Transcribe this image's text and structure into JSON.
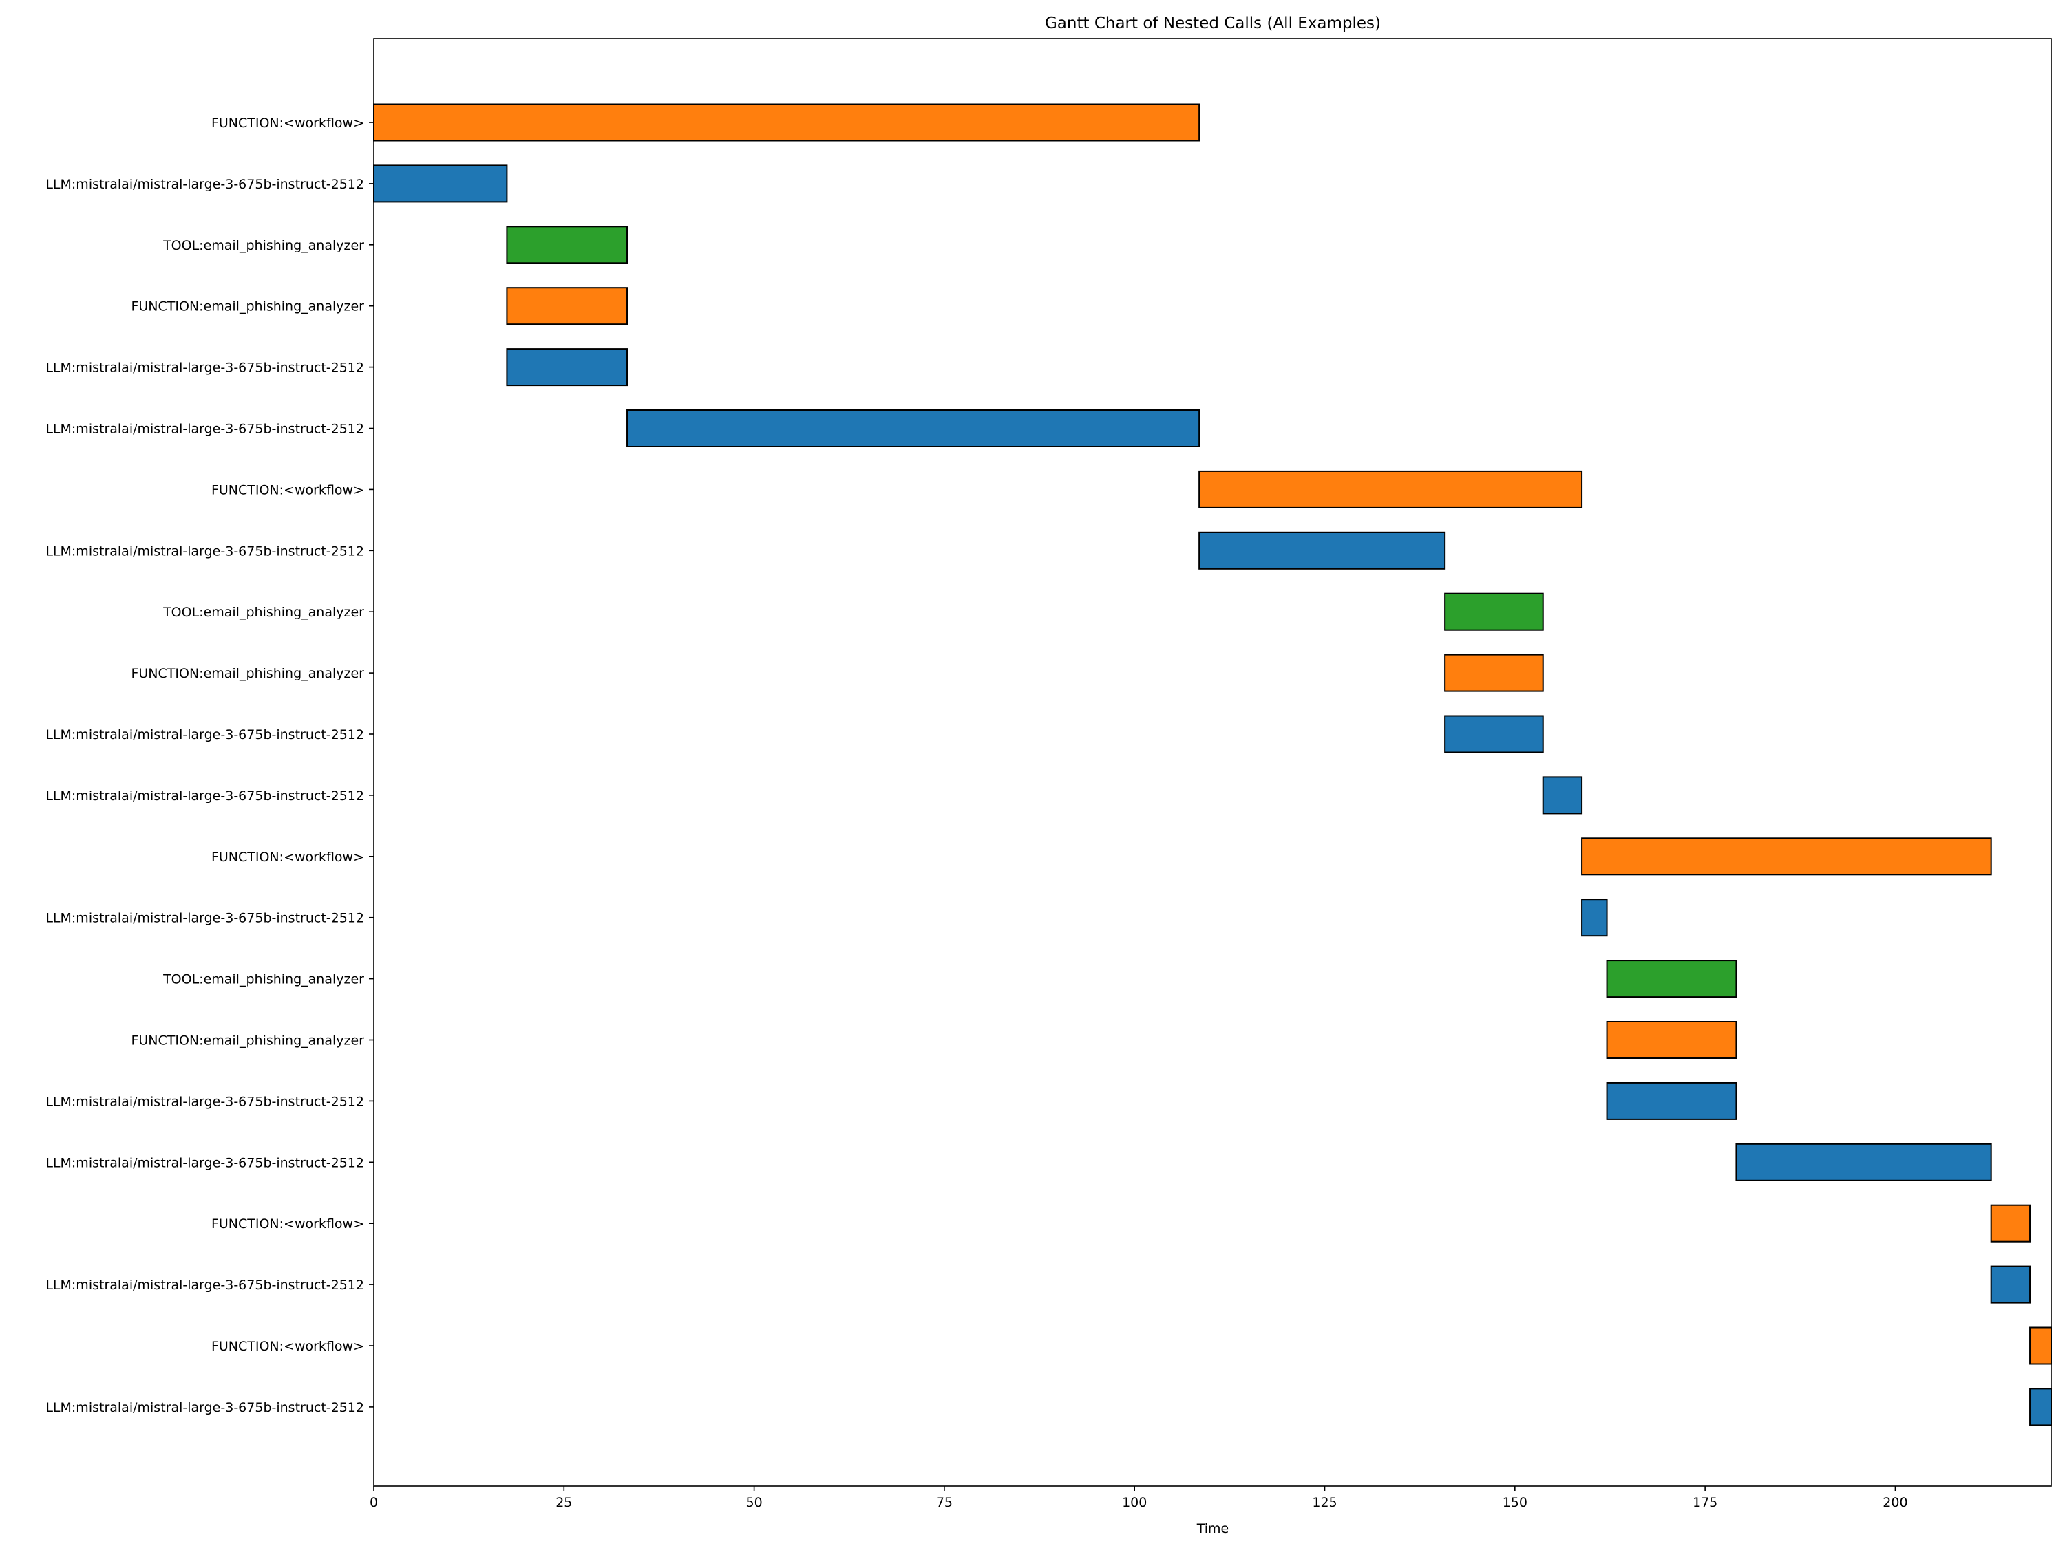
{
  "chart_data": {
    "type": "gantt",
    "title": "Gantt Chart of Nested Calls (All Examples)",
    "xlabel": "Time",
    "ylabel": "",
    "xlim": [
      0,
      220.5
    ],
    "xticks": [
      0,
      25,
      50,
      75,
      100,
      125,
      150,
      175,
      200
    ],
    "grid": false,
    "legend": "none",
    "colors": {
      "FUNCTION": "#ff7f0e",
      "LLM": "#1f77b4",
      "TOOL": "#2ca02c"
    },
    "rows": [
      {
        "label": "FUNCTION:<workflow>",
        "kind": "FUNCTION",
        "start": 0,
        "end": 108.5
      },
      {
        "label": "LLM:mistralai/mistral-large-3-675b-instruct-2512",
        "kind": "LLM",
        "start": 0,
        "end": 17.5
      },
      {
        "label": "TOOL:email_phishing_analyzer",
        "kind": "TOOL",
        "start": 17.5,
        "end": 33.3
      },
      {
        "label": "FUNCTION:email_phishing_analyzer",
        "kind": "FUNCTION",
        "start": 17.5,
        "end": 33.3
      },
      {
        "label": "LLM:mistralai/mistral-large-3-675b-instruct-2512",
        "kind": "LLM",
        "start": 17.5,
        "end": 33.3
      },
      {
        "label": "LLM:mistralai/mistral-large-3-675b-instruct-2512",
        "kind": "LLM",
        "start": 33.3,
        "end": 108.5
      },
      {
        "label": "FUNCTION:<workflow>",
        "kind": "FUNCTION",
        "start": 108.5,
        "end": 158.8
      },
      {
        "label": "LLM:mistralai/mistral-large-3-675b-instruct-2512",
        "kind": "LLM",
        "start": 108.5,
        "end": 140.8
      },
      {
        "label": "TOOL:email_phishing_analyzer",
        "kind": "TOOL",
        "start": 140.8,
        "end": 153.7
      },
      {
        "label": "FUNCTION:email_phishing_analyzer",
        "kind": "FUNCTION",
        "start": 140.8,
        "end": 153.7
      },
      {
        "label": "LLM:mistralai/mistral-large-3-675b-instruct-2512",
        "kind": "LLM",
        "start": 140.8,
        "end": 153.7
      },
      {
        "label": "LLM:mistralai/mistral-large-3-675b-instruct-2512",
        "kind": "LLM",
        "start": 153.7,
        "end": 158.8
      },
      {
        "label": "FUNCTION:<workflow>",
        "kind": "FUNCTION",
        "start": 158.8,
        "end": 212.6
      },
      {
        "label": "LLM:mistralai/mistral-large-3-675b-instruct-2512",
        "kind": "LLM",
        "start": 158.8,
        "end": 162.1
      },
      {
        "label": "TOOL:email_phishing_analyzer",
        "kind": "TOOL",
        "start": 162.1,
        "end": 179.1
      },
      {
        "label": "FUNCTION:email_phishing_analyzer",
        "kind": "FUNCTION",
        "start": 162.1,
        "end": 179.1
      },
      {
        "label": "LLM:mistralai/mistral-large-3-675b-instruct-2512",
        "kind": "LLM",
        "start": 162.1,
        "end": 179.1
      },
      {
        "label": "LLM:mistralai/mistral-large-3-675b-instruct-2512",
        "kind": "LLM",
        "start": 179.1,
        "end": 212.6
      },
      {
        "label": "FUNCTION:<workflow>",
        "kind": "FUNCTION",
        "start": 212.6,
        "end": 217.7
      },
      {
        "label": "LLM:mistralai/mistral-large-3-675b-instruct-2512",
        "kind": "LLM",
        "start": 212.6,
        "end": 217.7
      },
      {
        "label": "FUNCTION:<workflow>",
        "kind": "FUNCTION",
        "start": 217.7,
        "end": 220.5
      },
      {
        "label": "LLM:mistralai/mistral-large-3-675b-instruct-2512",
        "kind": "LLM",
        "start": 217.7,
        "end": 220.5
      }
    ]
  }
}
